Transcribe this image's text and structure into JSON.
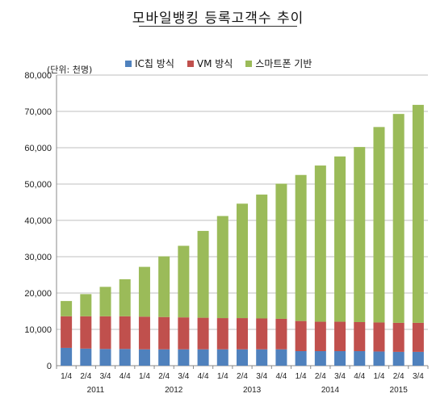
{
  "chart_data": {
    "type": "bar",
    "stacked": true,
    "title": "모바일뱅킹 등록고객수 추이",
    "unit_note": "(단위: 천명)",
    "categories": [
      "1/4",
      "2/4",
      "3/4",
      "4/4",
      "1/4",
      "2/4",
      "3/4",
      "4/4",
      "1/4",
      "2/4",
      "3/4",
      "4/4",
      "1/4",
      "2/4",
      "3/4",
      "4/4",
      "1/4",
      "2/4",
      "3/4"
    ],
    "year_labels": [
      {
        "label": "2011",
        "from": 0,
        "to": 3
      },
      {
        "label": "2012",
        "from": 4,
        "to": 7
      },
      {
        "label": "2013",
        "from": 8,
        "to": 11
      },
      {
        "label": "2014",
        "from": 12,
        "to": 15
      },
      {
        "label": "2015",
        "from": 16,
        "to": 18
      }
    ],
    "series": [
      {
        "name": "IC칩 방식",
        "color": "#4f81bd",
        "values": [
          4900,
          4700,
          4600,
          4600,
          4500,
          4500,
          4500,
          4500,
          4500,
          4500,
          4500,
          4500,
          4000,
          4000,
          4000,
          4000,
          3900,
          3800,
          3800
        ]
      },
      {
        "name": "VM 방식",
        "color": "#c0504d",
        "values": [
          8700,
          8900,
          9000,
          9000,
          9000,
          8900,
          8800,
          8700,
          8600,
          8600,
          8500,
          8400,
          8300,
          8100,
          8100,
          8000,
          8000,
          8000,
          8000
        ]
      },
      {
        "name": "스마트폰 기반",
        "color": "#9bbb59",
        "values": [
          4200,
          6100,
          8100,
          10200,
          13700,
          16700,
          19700,
          23900,
          28100,
          31500,
          34100,
          37200,
          40200,
          43000,
          45500,
          48200,
          53800,
          57500,
          60000
        ]
      }
    ],
    "yticks": [
      0,
      10000,
      20000,
      30000,
      40000,
      50000,
      60000,
      70000,
      80000
    ],
    "ytick_labels": [
      "0",
      "10,000",
      "20,000",
      "30,000",
      "40,000",
      "50,000",
      "60,000",
      "70,000",
      "80,000"
    ],
    "ylim": [
      0,
      80000
    ],
    "grid": true,
    "legend_position": "top"
  }
}
